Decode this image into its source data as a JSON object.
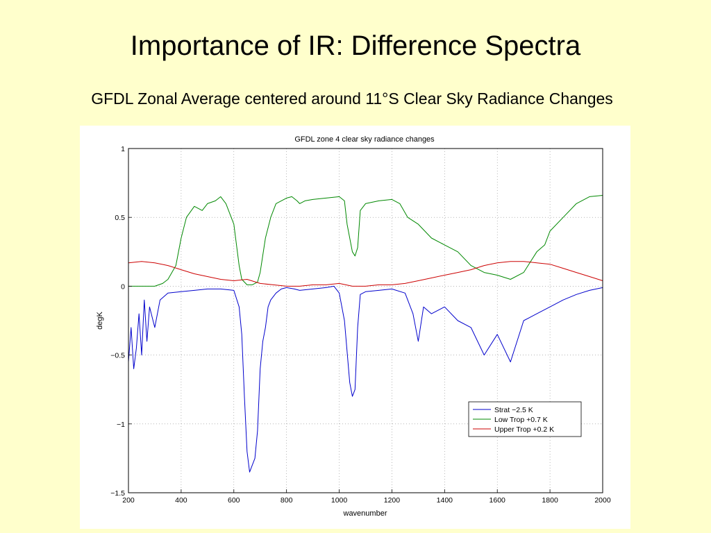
{
  "slide": {
    "title": "Importance of IR: Difference Spectra",
    "subtitle": "GFDL Zonal Average centered around 11°S Clear Sky Radiance Changes"
  },
  "chart_data": {
    "type": "line",
    "title": "GFDL zone 4 clear sky radiance changes",
    "xlabel": "wavenumber",
    "ylabel": "degK",
    "xlim": [
      200,
      2000
    ],
    "ylim": [
      -1.5,
      1
    ],
    "xticks": [
      "200",
      "400",
      "600",
      "800",
      "1000",
      "1200",
      "1400",
      "1600",
      "1800",
      "2000"
    ],
    "yticks": [
      "1",
      "0.5",
      "0",
      "−0.5",
      "−1",
      "−1.5"
    ],
    "grid": true,
    "legend_position": "bottom-right",
    "series": [
      {
        "name": "Strat −2.5 K",
        "color": "#0000cc",
        "x": [
          200,
          210,
          220,
          230,
          240,
          250,
          260,
          270,
          280,
          300,
          320,
          350,
          400,
          450,
          500,
          550,
          600,
          620,
          630,
          640,
          650,
          660,
          670,
          680,
          690,
          700,
          710,
          720,
          730,
          740,
          760,
          780,
          800,
          830,
          850,
          900,
          950,
          980,
          1000,
          1020,
          1040,
          1050,
          1060,
          1070,
          1080,
          1100,
          1150,
          1200,
          1250,
          1280,
          1300,
          1320,
          1350,
          1400,
          1450,
          1500,
          1550,
          1600,
          1650,
          1700,
          1750,
          1800,
          1850,
          1900,
          1950,
          2000
        ],
        "y": [
          -0.55,
          -0.3,
          -0.6,
          -0.45,
          -0.2,
          -0.5,
          -0.1,
          -0.4,
          -0.15,
          -0.3,
          -0.1,
          -0.05,
          -0.04,
          -0.03,
          -0.02,
          -0.02,
          -0.03,
          -0.15,
          -0.35,
          -0.8,
          -1.2,
          -1.35,
          -1.3,
          -1.25,
          -1.05,
          -0.6,
          -0.4,
          -0.3,
          -0.15,
          -0.1,
          -0.05,
          -0.02,
          -0.01,
          -0.02,
          -0.03,
          -0.02,
          -0.01,
          0.0,
          -0.05,
          -0.25,
          -0.7,
          -0.8,
          -0.75,
          -0.3,
          -0.06,
          -0.04,
          -0.03,
          -0.02,
          -0.05,
          -0.2,
          -0.4,
          -0.15,
          -0.2,
          -0.15,
          -0.25,
          -0.3,
          -0.5,
          -0.35,
          -0.55,
          -0.25,
          -0.2,
          -0.15,
          -0.1,
          -0.06,
          -0.03,
          -0.01
        ]
      },
      {
        "name": "Low Trop +0.7 K",
        "color": "#008800",
        "x": [
          200,
          250,
          300,
          330,
          350,
          380,
          400,
          420,
          450,
          480,
          500,
          530,
          550,
          570,
          580,
          600,
          610,
          620,
          630,
          650,
          670,
          690,
          700,
          720,
          740,
          760,
          780,
          800,
          820,
          840,
          850,
          870,
          900,
          950,
          1000,
          1020,
          1030,
          1040,
          1050,
          1060,
          1070,
          1080,
          1100,
          1150,
          1200,
          1230,
          1260,
          1300,
          1350,
          1400,
          1450,
          1500,
          1550,
          1600,
          1650,
          1700,
          1750,
          1780,
          1800,
          1850,
          1900,
          1950,
          2000
        ],
        "y": [
          0.0,
          0.0,
          0.0,
          0.02,
          0.05,
          0.15,
          0.35,
          0.5,
          0.58,
          0.55,
          0.6,
          0.62,
          0.65,
          0.6,
          0.55,
          0.45,
          0.3,
          0.15,
          0.05,
          0.01,
          0.01,
          0.03,
          0.1,
          0.35,
          0.5,
          0.6,
          0.62,
          0.64,
          0.65,
          0.62,
          0.6,
          0.62,
          0.63,
          0.64,
          0.65,
          0.62,
          0.45,
          0.35,
          0.25,
          0.22,
          0.28,
          0.55,
          0.6,
          0.62,
          0.63,
          0.6,
          0.5,
          0.45,
          0.35,
          0.3,
          0.25,
          0.15,
          0.1,
          0.08,
          0.05,
          0.1,
          0.25,
          0.3,
          0.4,
          0.5,
          0.6,
          0.65,
          0.66
        ]
      },
      {
        "name": "Upper Trop +0.2 K",
        "color": "#cc0000",
        "x": [
          200,
          250,
          300,
          350,
          400,
          450,
          500,
          550,
          600,
          650,
          700,
          750,
          800,
          850,
          900,
          950,
          1000,
          1050,
          1100,
          1150,
          1200,
          1250,
          1300,
          1350,
          1400,
          1450,
          1500,
          1550,
          1600,
          1650,
          1700,
          1750,
          1800,
          1850,
          1900,
          1950,
          2000
        ],
        "y": [
          0.17,
          0.18,
          0.17,
          0.15,
          0.12,
          0.09,
          0.07,
          0.05,
          0.04,
          0.05,
          0.02,
          0.01,
          0.0,
          0.0,
          0.01,
          0.01,
          0.02,
          0.0,
          0.0,
          0.01,
          0.01,
          0.02,
          0.04,
          0.06,
          0.08,
          0.1,
          0.12,
          0.15,
          0.17,
          0.18,
          0.18,
          0.17,
          0.16,
          0.13,
          0.1,
          0.07,
          0.04
        ]
      }
    ]
  }
}
